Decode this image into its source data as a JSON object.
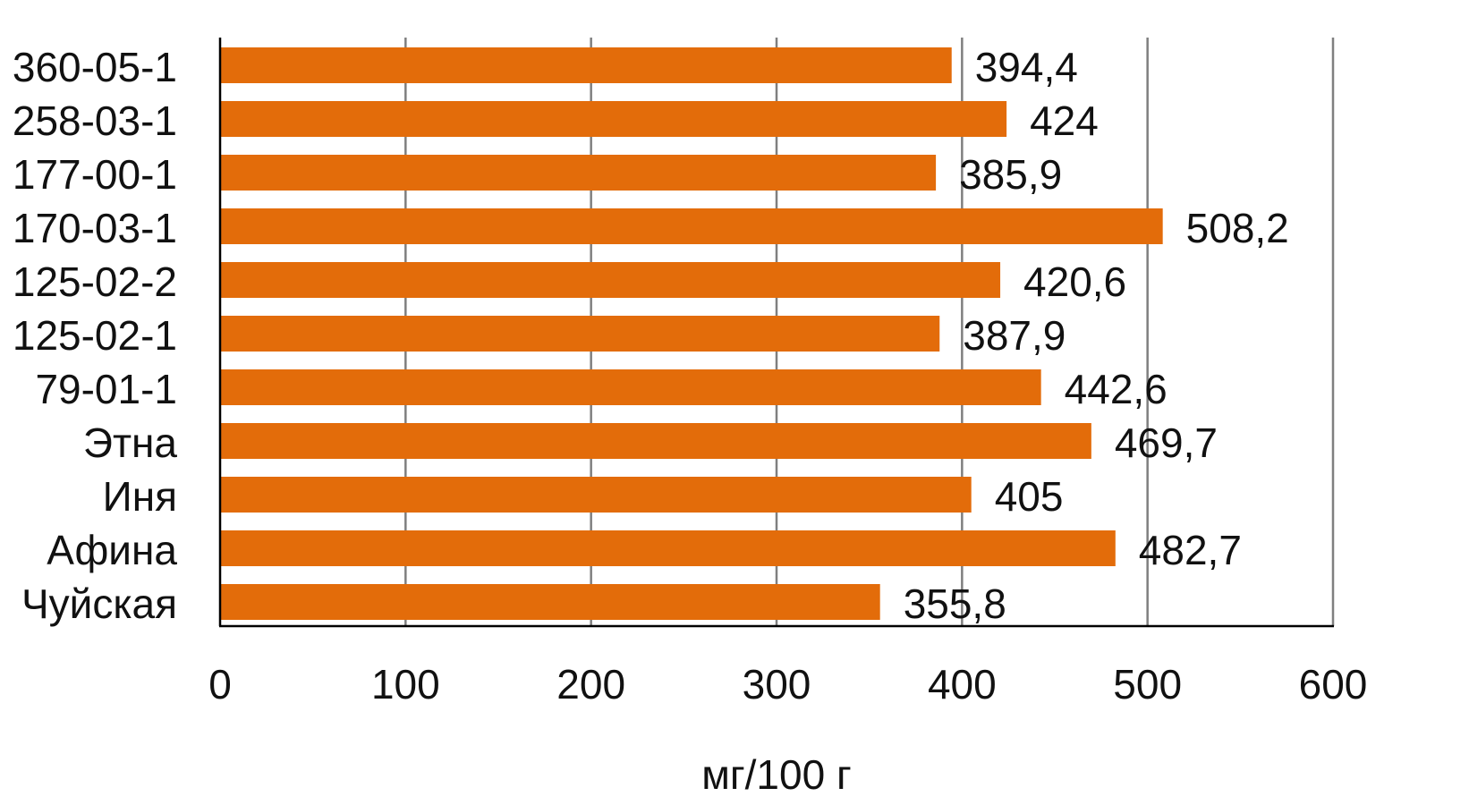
{
  "chart_data": {
    "type": "bar",
    "orientation": "horizontal",
    "categories": [
      "360-05-1",
      "258-03-1",
      "177-00-1",
      "170-03-1",
      "125-02-2",
      "125-02-1",
      "79-01-1",
      "Этна",
      "Иня",
      "Афина",
      "Чуйская"
    ],
    "values": [
      394.4,
      424,
      385.9,
      508.2,
      420.6,
      387.9,
      442.6,
      469.7,
      405,
      482.7,
      355.8
    ],
    "data_labels": [
      "394,4",
      "424",
      "385,9",
      "508,2",
      "420,6",
      "387,9",
      "442,6",
      "469,7",
      "405",
      "482,7",
      "355,8"
    ],
    "title": "",
    "xlabel": "мг/100 г",
    "ylabel": "",
    "xlim": [
      0,
      600
    ],
    "xticks": [
      0,
      100,
      200,
      300,
      400,
      500,
      600
    ],
    "xtick_labels": [
      "0",
      "100",
      "200",
      "300",
      "400",
      "500",
      "600"
    ],
    "grid": "vertical",
    "legend": "none",
    "colors": {
      "bar": "#e36c0a",
      "grid": "#7f7f7f",
      "axis": "#000000",
      "text": "#111111"
    }
  }
}
